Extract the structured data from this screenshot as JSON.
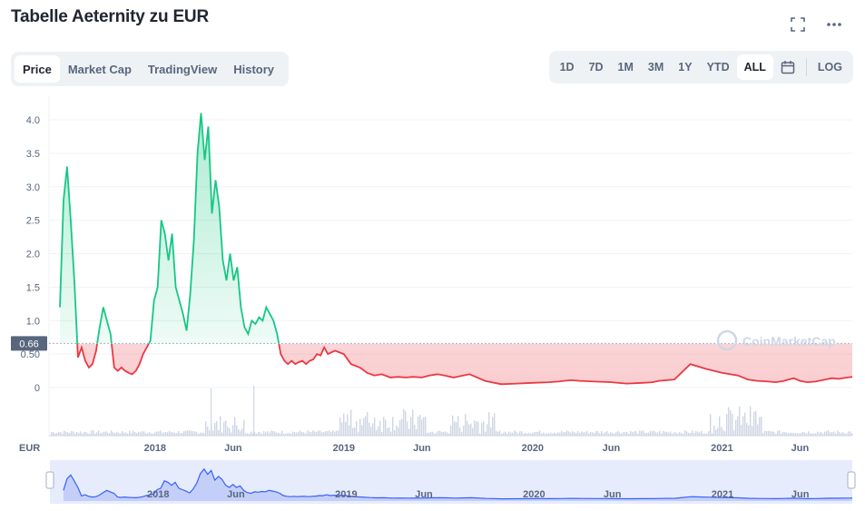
{
  "header": {
    "title": "Tabelle Aeternity zu EUR"
  },
  "tabs": [
    {
      "label": "Price",
      "active": true
    },
    {
      "label": "Market Cap",
      "active": false
    },
    {
      "label": "TradingView",
      "active": false
    },
    {
      "label": "History",
      "active": false
    }
  ],
  "ranges": [
    {
      "label": "1D",
      "active": false
    },
    {
      "label": "7D",
      "active": false
    },
    {
      "label": "1M",
      "active": false
    },
    {
      "label": "3M",
      "active": false
    },
    {
      "label": "1Y",
      "active": false
    },
    {
      "label": "YTD",
      "active": false
    },
    {
      "label": "ALL",
      "active": true
    }
  ],
  "log_label": "LOG",
  "icons": {
    "fullscreen": "fullscreen-icon",
    "more": "more-icon",
    "calendar": "calendar-icon"
  },
  "currency_label": "EUR",
  "watermark": "CoinMarketCap",
  "colors": {
    "up": "#16c784",
    "down": "#ea3943",
    "navigator": "#3861fb",
    "grid": "#eff2f5"
  },
  "chart_data": {
    "type": "line",
    "title": "Tabelle Aeternity zu EUR",
    "xlabel": "",
    "ylabel": "EUR",
    "ylim": [
      0,
      4.2
    ],
    "y_ticks": [
      "0",
      "0.50",
      "1.0",
      "1.5",
      "2.0",
      "2.5",
      "3.0",
      "3.5",
      "4.0"
    ],
    "x_ticks": [
      "2018",
      "Jun",
      "2019",
      "Jun",
      "2020",
      "Jun",
      "2021",
      "Jun"
    ],
    "baseline": 0.66,
    "baseline_label": "0.66",
    "grid": true,
    "series": [
      {
        "x": [
          "2017-07-01",
          "2017-07-08",
          "2017-07-15",
          "2017-07-22",
          "2017-07-29",
          "2017-08-05",
          "2017-08-12",
          "2017-08-19",
          "2017-08-26",
          "2017-09-02",
          "2017-09-09",
          "2017-09-16",
          "2017-09-23",
          "2017-09-30",
          "2017-10-07",
          "2017-10-14",
          "2017-10-21",
          "2017-10-28",
          "2017-11-04",
          "2017-11-11",
          "2017-11-18",
          "2017-11-25",
          "2017-12-02",
          "2017-12-09",
          "2017-12-16",
          "2017-12-23",
          "2017-12-30",
          "2018-01-06",
          "2018-01-13",
          "2018-01-20",
          "2018-01-27",
          "2018-02-03",
          "2018-02-10",
          "2018-02-17",
          "2018-02-24",
          "2018-03-03",
          "2018-03-10",
          "2018-03-17",
          "2018-03-24",
          "2018-03-31",
          "2018-04-07",
          "2018-04-14",
          "2018-04-21",
          "2018-04-28",
          "2018-05-05",
          "2018-05-12",
          "2018-05-19",
          "2018-05-26",
          "2018-06-02",
          "2018-06-09",
          "2018-06-16",
          "2018-06-23",
          "2018-06-30",
          "2018-07-07",
          "2018-07-14",
          "2018-07-21",
          "2018-07-28",
          "2018-08-04",
          "2018-08-11",
          "2018-08-18",
          "2018-08-25",
          "2018-09-01",
          "2018-09-08",
          "2018-09-15",
          "2018-09-22",
          "2018-09-29",
          "2018-10-06",
          "2018-10-13",
          "2018-10-20",
          "2018-10-27",
          "2018-11-03",
          "2018-11-10",
          "2018-11-17",
          "2018-11-24",
          "2018-12-01",
          "2018-12-15",
          "2019-01-01",
          "2019-01-15",
          "2019-02-01",
          "2019-02-15",
          "2019-03-01",
          "2019-03-15",
          "2019-04-01",
          "2019-04-15",
          "2019-05-01",
          "2019-05-15",
          "2019-06-01",
          "2019-06-15",
          "2019-07-01",
          "2019-07-15",
          "2019-08-01",
          "2019-09-01",
          "2019-10-01",
          "2019-11-01",
          "2019-12-01",
          "2020-01-01",
          "2020-02-01",
          "2020-02-20",
          "2020-03-01",
          "2020-03-15",
          "2020-04-01",
          "2020-05-01",
          "2020-06-01",
          "2020-07-01",
          "2020-08-01",
          "2020-08-20",
          "2020-09-01",
          "2020-10-01",
          "2020-11-01",
          "2020-12-01",
          "2021-01-01",
          "2021-02-01",
          "2021-02-20",
          "2021-03-10",
          "2021-04-01",
          "2021-04-15",
          "2021-05-01",
          "2021-05-10",
          "2021-05-20",
          "2021-06-01",
          "2021-06-15",
          "2021-07-01",
          "2021-07-20",
          "2021-08-01",
          "2021-08-15",
          "2021-09-01",
          "2021-09-10"
        ],
        "values": [
          1.2,
          2.8,
          3.3,
          2.5,
          1.6,
          0.45,
          0.6,
          0.4,
          0.3,
          0.35,
          0.55,
          0.9,
          1.2,
          1.0,
          0.8,
          0.3,
          0.25,
          0.3,
          0.25,
          0.22,
          0.2,
          0.25,
          0.35,
          0.5,
          0.6,
          0.7,
          1.3,
          1.5,
          2.5,
          2.3,
          1.9,
          2.3,
          1.5,
          1.3,
          1.1,
          0.85,
          1.4,
          2.2,
          3.5,
          4.1,
          3.4,
          3.9,
          2.6,
          3.1,
          2.7,
          1.9,
          1.6,
          2.0,
          1.6,
          1.8,
          1.2,
          0.9,
          0.8,
          1.0,
          0.95,
          1.05,
          1.0,
          1.2,
          1.1,
          1.0,
          0.8,
          0.5,
          0.4,
          0.35,
          0.4,
          0.35,
          0.38,
          0.4,
          0.35,
          0.4,
          0.42,
          0.5,
          0.48,
          0.6,
          0.5,
          0.55,
          0.5,
          0.35,
          0.3,
          0.22,
          0.18,
          0.2,
          0.15,
          0.16,
          0.15,
          0.16,
          0.15,
          0.18,
          0.2,
          0.18,
          0.15,
          0.2,
          0.1,
          0.05,
          0.06,
          0.07,
          0.08,
          0.09,
          0.1,
          0.11,
          0.1,
          0.09,
          0.08,
          0.06,
          0.07,
          0.08,
          0.1,
          0.12,
          0.35,
          0.28,
          0.22,
          0.18,
          0.12,
          0.1,
          0.09,
          0.08,
          0.1,
          0.12,
          0.14,
          0.1,
          0.08,
          0.09,
          0.12,
          0.14,
          0.13,
          0.15,
          0.16
        ]
      }
    ]
  }
}
